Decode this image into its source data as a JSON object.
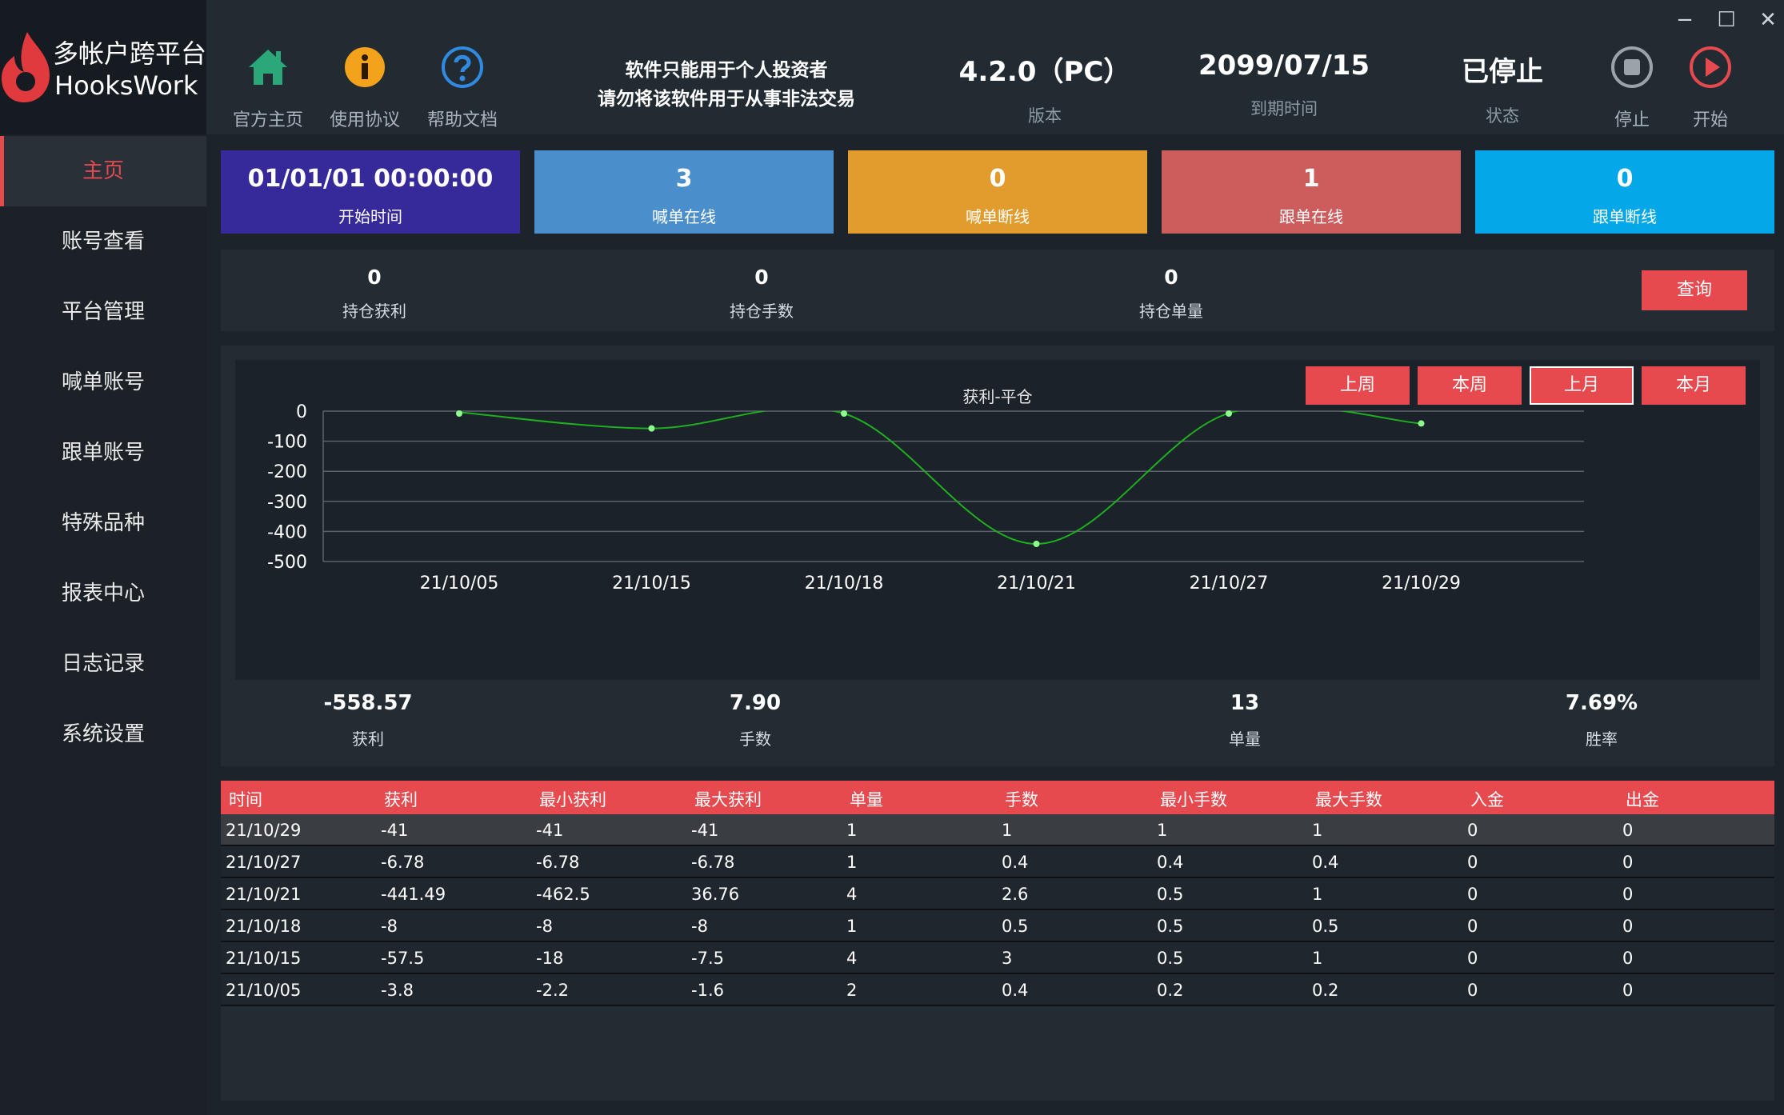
{
  "app": {
    "logo_line1": "多帐户跨平台",
    "logo_line2": "HooksWork"
  },
  "sidebar": {
    "items": [
      {
        "label": "主页",
        "active": true
      },
      {
        "label": "账号查看"
      },
      {
        "label": "平台管理"
      },
      {
        "label": "喊单账号"
      },
      {
        "label": "跟单账号"
      },
      {
        "label": "特殊品种"
      },
      {
        "label": "报表中心"
      },
      {
        "label": "日志记录"
      },
      {
        "label": "系统设置"
      }
    ]
  },
  "header": {
    "home_label": "官方主页",
    "agreement_label": "使用协议",
    "help_label": "帮助文档",
    "notice_line1": "软件只能用于个人投资者",
    "notice_line2": "请勿将该软件用于从事非法交易",
    "version_value": "4.2.0（PC）",
    "version_label": "版本",
    "expire_value": "2099/07/15",
    "expire_label": "到期时间",
    "status_value": "已停止",
    "status_label": "状态",
    "stop_label": "停止",
    "start_label": "开始",
    "window": {
      "minimize": "−",
      "maximize": "☐",
      "close": "✕"
    }
  },
  "tiles": [
    {
      "value": "01/01/01 00:00:00",
      "label": "开始时间",
      "color": "#36299a"
    },
    {
      "value": "3",
      "label": "喊单在线",
      "color": "#4a8fcb"
    },
    {
      "value": "0",
      "label": "喊单断线",
      "color": "#e29b2d"
    },
    {
      "value": "1",
      "label": "跟单在线",
      "color": "#cd5c5c"
    },
    {
      "value": "0",
      "label": "跟单断线",
      "color": "#04a8e8"
    }
  ],
  "holding": {
    "profit_value": "0",
    "profit_label": "持仓获利",
    "lots_value": "0",
    "lots_label": "持仓手数",
    "orders_value": "0",
    "orders_label": "持仓单量",
    "query_label": "查询"
  },
  "periods": [
    "上周",
    "本周",
    "上月",
    "本月"
  ],
  "chart_data": {
    "type": "line",
    "title": "获利-平仓",
    "categories": [
      "21/10/05",
      "21/10/15",
      "21/10/18",
      "21/10/21",
      "21/10/27",
      "21/10/29"
    ],
    "series": [
      {
        "values": [
          -3.8,
          -57.5,
          -8,
          -441.49,
          -6.78,
          -41
        ]
      }
    ],
    "ylim": [
      -500,
      0
    ],
    "yticks": [
      0,
      -100,
      -200,
      -300,
      -400,
      -500
    ],
    "grid": true,
    "line_color": "#1fae1f",
    "point_color": "#8cff8c"
  },
  "summary": {
    "profit_value": "-558.57",
    "profit_label": "获利",
    "lots_value": "7.90",
    "lots_label": "手数",
    "orders_value": "13",
    "orders_label": "单量",
    "winrate_value": "7.69%",
    "winrate_label": "胜率"
  },
  "table": {
    "columns": [
      "时间",
      "获利",
      "最小获利",
      "最大获利",
      "单量",
      "手数",
      "最小手数",
      "最大手数",
      "入金",
      "出金"
    ],
    "rows": [
      [
        "21/10/29",
        "-41",
        "-41",
        "-41",
        "1",
        "1",
        "1",
        "1",
        "0",
        "0"
      ],
      [
        "21/10/27",
        "-6.78",
        "-6.78",
        "-6.78",
        "1",
        "0.4",
        "0.4",
        "0.4",
        "0",
        "0"
      ],
      [
        "21/10/21",
        "-441.49",
        "-462.5",
        "36.76",
        "4",
        "2.6",
        "0.5",
        "1",
        "0",
        "0"
      ],
      [
        "21/10/18",
        "-8",
        "-8",
        "-8",
        "1",
        "0.5",
        "0.5",
        "0.5",
        "0",
        "0"
      ],
      [
        "21/10/15",
        "-57.5",
        "-18",
        "-7.5",
        "4",
        "3",
        "0.5",
        "1",
        "0",
        "0"
      ],
      [
        "21/10/05",
        "-3.8",
        "-2.2",
        "-1.6",
        "2",
        "0.4",
        "0.2",
        "0.2",
        "0",
        "0"
      ]
    ]
  },
  "colors": {
    "accent": "#e64a4f",
    "home_icon": "#2aa87a",
    "info_icon": "#f3a21c",
    "help_icon": "#2f8ae0",
    "stop_icon": "#9aa2aa",
    "start_icon": "#e64a4f"
  },
  "icons": {
    "home": "home-icon",
    "agreement": "info-icon",
    "help": "help-icon",
    "stop": "stop-icon",
    "start": "play-icon"
  }
}
